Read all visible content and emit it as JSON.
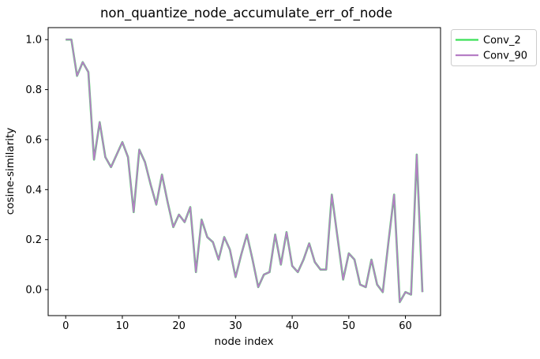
{
  "figure": {
    "background": "#ffffff",
    "spine_color": "#000000",
    "legend_border_color": "#cccccc"
  },
  "chart_data": {
    "type": "line",
    "title": "non_quantize_node_accumulate_err_of_node",
    "xlabel": "node index",
    "ylabel": "cosine-similarity",
    "xlim": [
      -3.1,
      66.2
    ],
    "ylim": [
      -0.104,
      1.048
    ],
    "grid": false,
    "legend": {
      "position": "outside upper right",
      "entries": [
        "Conv_2",
        "Conv_90"
      ]
    },
    "xticks": {
      "values": [
        0,
        10,
        20,
        30,
        40,
        50,
        60
      ],
      "labels": [
        "0",
        "10",
        "20",
        "30",
        "40",
        "50",
        "60"
      ]
    },
    "yticks": {
      "values": [
        0.0,
        0.2,
        0.4,
        0.6,
        0.8,
        1.0
      ],
      "labels": [
        "0.0",
        "0.2",
        "0.4",
        "0.6",
        "0.8",
        "1.0"
      ]
    },
    "x": [
      0,
      1,
      2,
      3,
      4,
      5,
      6,
      7,
      8,
      9,
      10,
      11,
      12,
      13,
      14,
      15,
      16,
      17,
      18,
      19,
      20,
      21,
      22,
      23,
      24,
      25,
      26,
      27,
      28,
      29,
      30,
      31,
      32,
      33,
      34,
      35,
      36,
      37,
      38,
      39,
      40,
      41,
      42,
      43,
      44,
      45,
      46,
      47,
      48,
      49,
      50,
      51,
      52,
      53,
      54,
      55,
      56,
      57,
      58,
      59,
      60,
      61,
      62,
      63
    ],
    "series": [
      {
        "name": "Conv_2",
        "color": "#3be058",
        "line_width": 2.6,
        "values": [
          1.0,
          1.0,
          0.855,
          0.91,
          0.87,
          0.52,
          0.67,
          0.53,
          0.49,
          0.54,
          0.59,
          0.53,
          0.31,
          0.56,
          0.51,
          0.42,
          0.34,
          0.46,
          0.35,
          0.25,
          0.3,
          0.27,
          0.33,
          0.07,
          0.28,
          0.21,
          0.19,
          0.12,
          0.21,
          0.16,
          0.05,
          0.14,
          0.22,
          0.12,
          0.01,
          0.06,
          0.07,
          0.22,
          0.1,
          0.23,
          0.095,
          0.07,
          0.12,
          0.185,
          0.11,
          0.08,
          0.08,
          0.38,
          0.21,
          0.04,
          0.145,
          0.12,
          0.02,
          0.01,
          0.12,
          0.02,
          -0.01,
          0.19,
          0.38,
          -0.05,
          -0.01,
          -0.02,
          0.54,
          -0.01
        ]
      },
      {
        "name": "Conv_90",
        "color": "#b67ec6",
        "line_width": 1.9,
        "values": [
          1.0,
          1.0,
          0.855,
          0.91,
          0.87,
          0.52,
          0.67,
          0.53,
          0.49,
          0.54,
          0.59,
          0.53,
          0.31,
          0.56,
          0.51,
          0.42,
          0.34,
          0.46,
          0.35,
          0.25,
          0.3,
          0.27,
          0.33,
          0.07,
          0.28,
          0.21,
          0.19,
          0.12,
          0.21,
          0.16,
          0.05,
          0.14,
          0.22,
          0.12,
          0.01,
          0.06,
          0.07,
          0.22,
          0.1,
          0.23,
          0.095,
          0.07,
          0.12,
          0.185,
          0.11,
          0.08,
          0.08,
          0.38,
          0.21,
          0.04,
          0.145,
          0.12,
          0.02,
          0.01,
          0.12,
          0.02,
          -0.01,
          0.19,
          0.38,
          -0.05,
          -0.01,
          -0.02,
          0.54,
          -0.01
        ]
      }
    ]
  }
}
